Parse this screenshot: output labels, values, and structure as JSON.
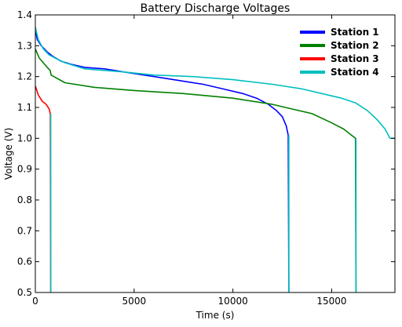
{
  "chart_data": {
    "type": "line",
    "title": "Battery Discharge Voltages",
    "xlabel": "Time (s)",
    "ylabel": "Voltage (V)",
    "xlim": [
      0,
      18200
    ],
    "ylim": [
      0.5,
      1.4
    ],
    "xticks": [
      0,
      5000,
      10000,
      15000
    ],
    "xtick_labels": [
      "0",
      "5000",
      "10000",
      "15000"
    ],
    "yticks": [
      0.5,
      0.6,
      0.7,
      0.8,
      0.9,
      1.0,
      1.1,
      1.2,
      1.3,
      1.4
    ],
    "ytick_labels": [
      "0.5",
      "0.6",
      "0.7",
      "0.8",
      "0.9",
      "1.0",
      "1.1",
      "1.2",
      "1.3",
      "1.4"
    ],
    "grid": false,
    "legend_position": "top-right",
    "series": [
      {
        "name": "Station 1",
        "color": "#0000ff",
        "x": [
          0,
          100,
          300,
          600,
          900,
          1300,
          1800,
          2500,
          3500,
          4500,
          5500,
          6500,
          7500,
          8500,
          9500,
          10500,
          11200,
          11800,
          12200,
          12500,
          12700,
          12800,
          12830
        ],
        "y": [
          1.35,
          1.32,
          1.3,
          1.28,
          1.265,
          1.25,
          1.24,
          1.23,
          1.225,
          1.215,
          1.205,
          1.195,
          1.185,
          1.175,
          1.16,
          1.145,
          1.13,
          1.11,
          1.09,
          1.07,
          1.04,
          1.01,
          0.5
        ]
      },
      {
        "name": "Station 2",
        "color": "#008000",
        "x": [
          0,
          200,
          400,
          600,
          750,
          800,
          1500,
          3000,
          5000,
          7500,
          10000,
          12000,
          13000,
          14000,
          15000,
          15600,
          16000,
          16200,
          16230
        ],
        "y": [
          1.29,
          1.26,
          1.245,
          1.23,
          1.22,
          1.205,
          1.18,
          1.165,
          1.155,
          1.145,
          1.13,
          1.11,
          1.095,
          1.08,
          1.05,
          1.03,
          1.01,
          1.0,
          0.5
        ]
      },
      {
        "name": "Station 3",
        "color": "#ff0000",
        "x": [
          0,
          150,
          350,
          550,
          700,
          760,
          780
        ],
        "y": [
          1.17,
          1.14,
          1.12,
          1.11,
          1.095,
          1.08,
          0.5
        ]
      },
      {
        "name": "Station 4",
        "color": "#00bfbf",
        "x": [
          0,
          150,
          400,
          700,
          1000,
          1500,
          2500,
          3500,
          4500,
          6000,
          8000,
          10000,
          12000,
          13500,
          14500,
          15500,
          16200,
          16800,
          17300,
          17700,
          17950,
          18200
        ],
        "y": [
          1.36,
          1.32,
          1.29,
          1.27,
          1.26,
          1.245,
          1.225,
          1.22,
          1.215,
          1.205,
          1.2,
          1.19,
          1.175,
          1.16,
          1.145,
          1.13,
          1.115,
          1.09,
          1.06,
          1.03,
          1.0,
          1.0
        ]
      },
      {
        "name": "",
        "color": "#00bfbf",
        "x": [
          780,
          780
        ],
        "y": [
          1.08,
          0.5
        ]
      },
      {
        "name": "",
        "color": "#00bfbf",
        "x": [
          12830,
          12830
        ],
        "y": [
          1.01,
          0.5
        ]
      },
      {
        "name": "",
        "color": "#00bfbf",
        "x": [
          16230,
          16230
        ],
        "y": [
          1.0,
          0.5
        ]
      }
    ]
  }
}
